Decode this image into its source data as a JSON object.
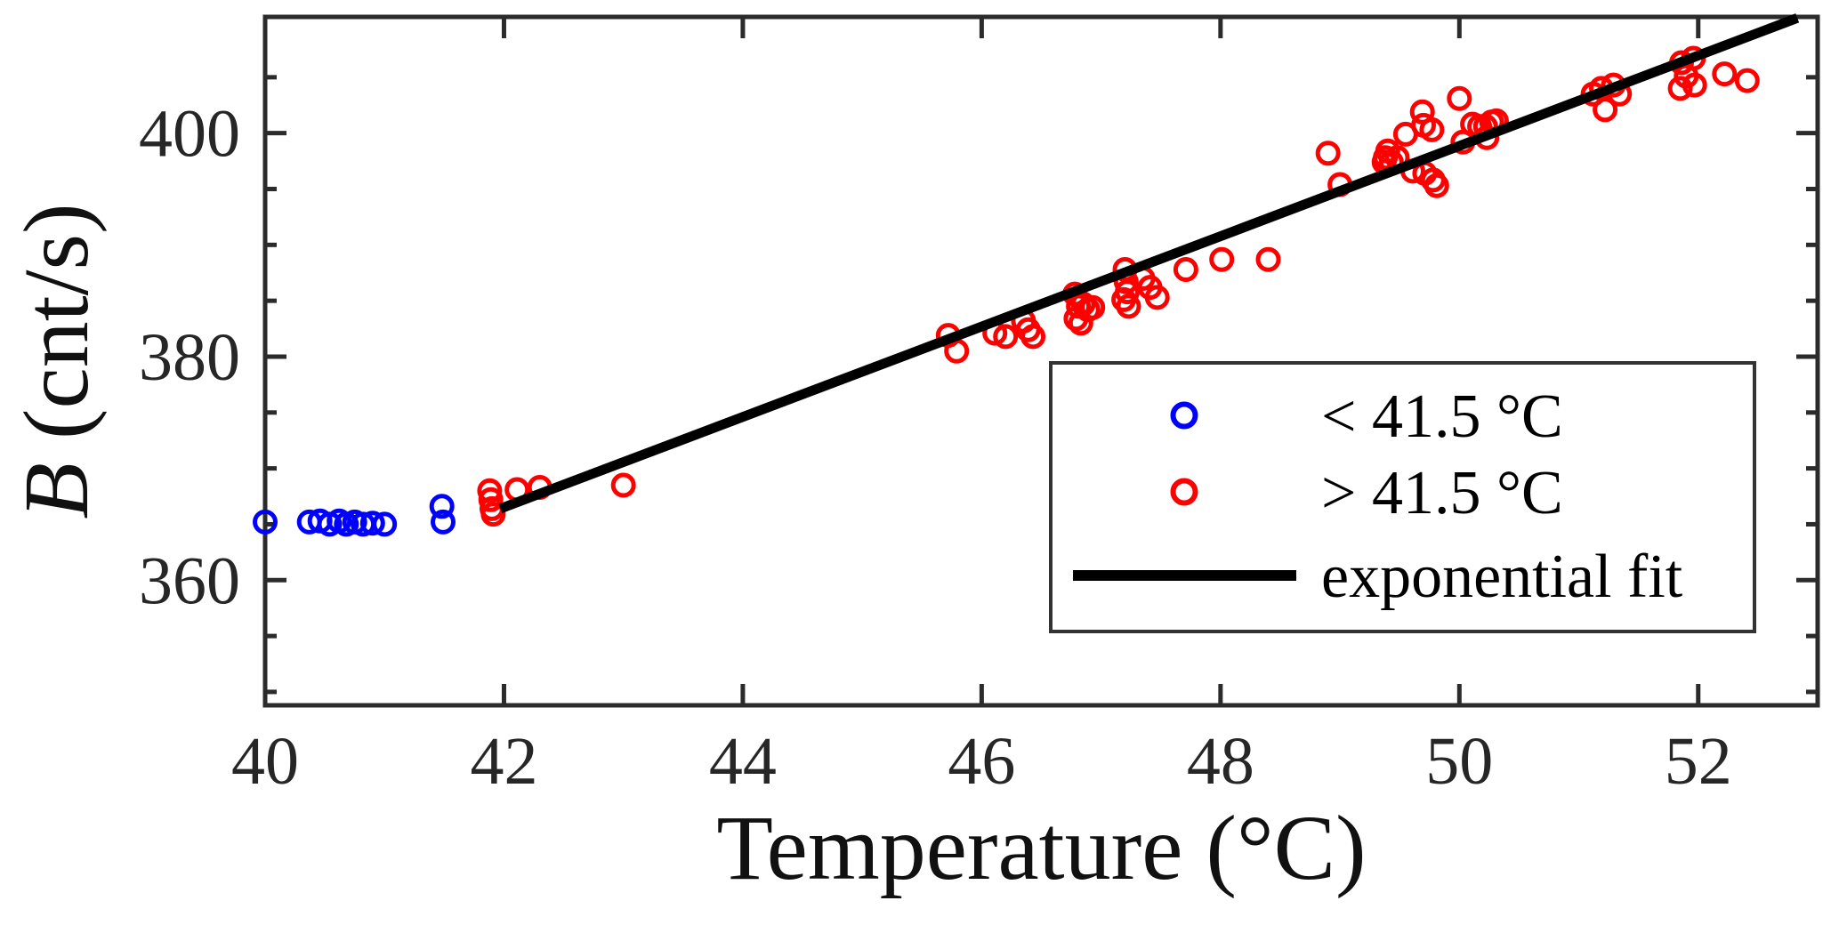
{
  "figure": {
    "background": "#ffffff",
    "axis_color": "#2b2b2b",
    "tick_label_color": "#262626",
    "label_color": "#111111"
  },
  "chart_data": {
    "type": "scatter",
    "title": "",
    "xlabel": "Temperature (°C)",
    "ylabel_italic": "B",
    "ylabel_rest": " (cnt/s)",
    "xlim": [
      40,
      53
    ],
    "ylim": [
      348.8,
      410.4
    ],
    "x_ticks": [
      40,
      42,
      44,
      46,
      48,
      50,
      52
    ],
    "y_ticks": [
      360,
      380,
      400
    ],
    "y_minor_ticks": [
      350,
      355,
      365,
      370,
      375,
      385,
      390,
      395,
      405
    ],
    "grid": false,
    "legend": {
      "position": "inside-middle-right",
      "entries": [
        {
          "label": "< 41.5 °C",
          "marker": "circle",
          "color": "#0000ff"
        },
        {
          "label": "> 41.5 °C",
          "marker": "circle",
          "color": "#ff0000"
        },
        {
          "label": "exponential fit",
          "marker": "line",
          "color": "#000000"
        }
      ]
    },
    "series": [
      {
        "name": "< 41.5 °C",
        "type": "scatter",
        "color": "#0000ff",
        "points": [
          [
            40.0,
            365.2
          ],
          [
            40.37,
            365.2
          ],
          [
            40.46,
            365.3
          ],
          [
            40.54,
            365.0
          ],
          [
            40.62,
            365.3
          ],
          [
            40.68,
            365.0
          ],
          [
            40.75,
            365.2
          ],
          [
            40.82,
            365.0
          ],
          [
            40.9,
            365.1
          ],
          [
            41.0,
            365.0
          ],
          [
            41.48,
            366.6
          ],
          [
            41.49,
            365.2
          ]
        ]
      },
      {
        "name": "> 41.5 °C",
        "type": "scatter",
        "color": "#ff0000",
        "points": [
          [
            41.88,
            368.0
          ],
          [
            41.89,
            367.2
          ],
          [
            41.9,
            366.4
          ],
          [
            41.91,
            365.9
          ],
          [
            42.11,
            368.1
          ],
          [
            42.3,
            368.3
          ],
          [
            43.0,
            368.5
          ],
          [
            45.72,
            381.9
          ],
          [
            45.79,
            380.5
          ],
          [
            46.11,
            382.1
          ],
          [
            46.2,
            381.8
          ],
          [
            46.35,
            383.2
          ],
          [
            46.39,
            382.4
          ],
          [
            46.43,
            381.8
          ],
          [
            46.78,
            385.6
          ],
          [
            46.79,
            383.4
          ],
          [
            46.81,
            384.5
          ],
          [
            46.83,
            383.0
          ],
          [
            46.85,
            384.7
          ],
          [
            46.89,
            384.2
          ],
          [
            46.93,
            384.4
          ],
          [
            47.19,
            385.1
          ],
          [
            47.2,
            387.8
          ],
          [
            47.21,
            386.7
          ],
          [
            47.22,
            385.8
          ],
          [
            47.23,
            384.5
          ],
          [
            47.35,
            387.0
          ],
          [
            47.41,
            386.2
          ],
          [
            47.47,
            385.3
          ],
          [
            47.71,
            387.8
          ],
          [
            48.01,
            388.7
          ],
          [
            48.4,
            388.7
          ],
          [
            48.9,
            398.2
          ],
          [
            49.0,
            395.4
          ],
          [
            49.37,
            397.4
          ],
          [
            49.38,
            397.8
          ],
          [
            49.4,
            398.4
          ],
          [
            49.43,
            397.4
          ],
          [
            49.48,
            397.8
          ],
          [
            49.55,
            399.9
          ],
          [
            49.61,
            396.6
          ],
          [
            49.69,
            401.9
          ],
          [
            49.7,
            400.7
          ],
          [
            49.71,
            396.4
          ],
          [
            49.77,
            400.3
          ],
          [
            49.78,
            395.8
          ],
          [
            49.81,
            395.3
          ],
          [
            50.0,
            403.1
          ],
          [
            50.03,
            399.2
          ],
          [
            50.11,
            400.8
          ],
          [
            50.17,
            400.6
          ],
          [
            50.22,
            400.6
          ],
          [
            50.23,
            399.6
          ],
          [
            50.27,
            401.0
          ],
          [
            50.31,
            401.1
          ],
          [
            51.12,
            403.5
          ],
          [
            51.19,
            404.0
          ],
          [
            51.22,
            402.1
          ],
          [
            51.29,
            404.3
          ],
          [
            51.34,
            403.5
          ],
          [
            51.85,
            404.0
          ],
          [
            51.86,
            406.3
          ],
          [
            51.9,
            405.1
          ],
          [
            51.96,
            406.7
          ],
          [
            51.97,
            404.3
          ],
          [
            52.22,
            405.3
          ],
          [
            52.41,
            404.7
          ]
        ]
      },
      {
        "name": "exponential fit",
        "type": "line",
        "color": "#000000",
        "points": [
          [
            41.97,
            366.4
          ],
          [
            52.83,
            410.3
          ]
        ]
      }
    ]
  }
}
